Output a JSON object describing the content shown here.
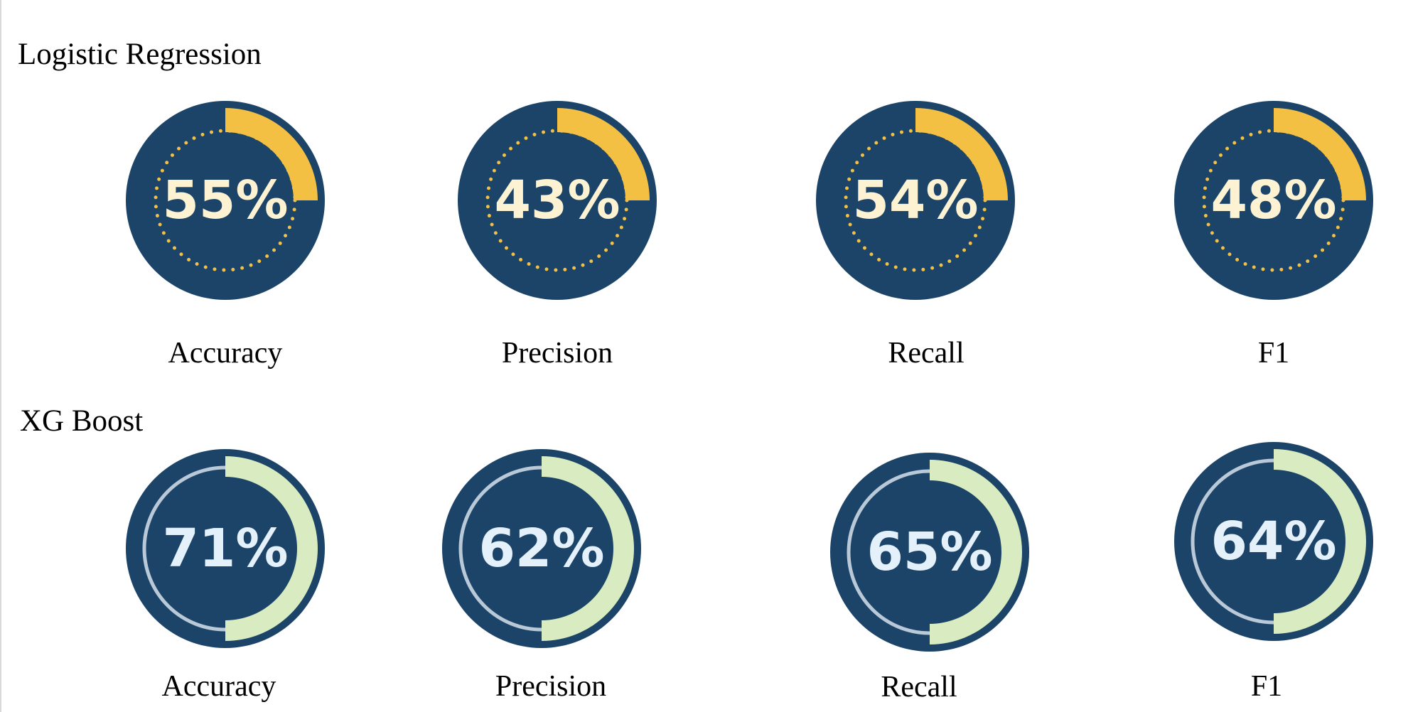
{
  "colors": {
    "disk": "#1b4468",
    "lr_arc": "#f4c044",
    "lr_dots": "#f4c044",
    "lr_text": "#fdf3d3",
    "xgb_arc": "#d9ebc0",
    "xgb_track": "#b9c9d8",
    "xgb_text": "#e4f1fb"
  },
  "chart_data": [
    {
      "type": "gauge",
      "title": "Logistic Regression",
      "categories": [
        "Accuracy",
        "Precision",
        "Recall",
        "F1"
      ],
      "values": [
        55,
        43,
        54,
        48
      ],
      "value_labels": [
        "55%",
        "43%",
        "54%",
        "48%"
      ],
      "unit": "%",
      "ylim": [
        0,
        100
      ]
    },
    {
      "type": "gauge",
      "title": "XG Boost",
      "categories": [
        "Accuracy",
        "Precision",
        "Recall",
        "F1"
      ],
      "values": [
        71,
        62,
        65,
        64
      ],
      "value_labels": [
        "71%",
        "62%",
        "65%",
        "64%"
      ],
      "unit": "%",
      "ylim": [
        0,
        100
      ]
    }
  ]
}
